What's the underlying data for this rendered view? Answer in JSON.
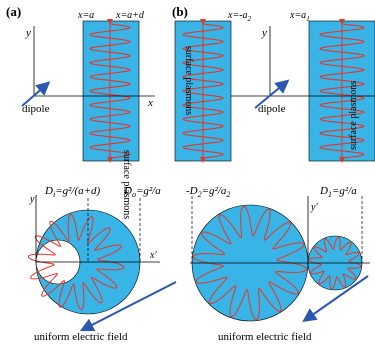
{
  "colors": {
    "fill": "#39b4e6",
    "wave": "#e2372b",
    "arrow": "#2b57b0",
    "axis": "#000000"
  },
  "panel_a": {
    "tag": "(a)",
    "x_left_label": "x=a",
    "x_right_label": "x=a+d",
    "y_label": "y",
    "x_label": "x",
    "dipole_label": "dipole",
    "plasmon_label": "surface plasmons",
    "di_label": "D",
    "di_sub": "i",
    "di_rest": "=g²/(a+d)",
    "do_label": "D",
    "do_sub": "o",
    "do_rest": "=g²/a",
    "yp_label": "y'",
    "xp_label": "x'",
    "field_label": "uniform electric field"
  },
  "panel_b": {
    "tag": "(b)",
    "x_left_label": "x=-a",
    "x_left_sub": "2",
    "x_right_label": "x=a",
    "x_right_sub": "1",
    "y_label": "y",
    "dipole_label": "dipole",
    "plasmon_left_label": "surface plasmons",
    "plasmon_right_label": "surface plasmons",
    "d2_label": "-D",
    "d2_sub": "2",
    "d2_rest": "=g²/a",
    "d2_sub2": "2",
    "d1_label": "D",
    "d1_sub": "1",
    "d1_rest": "=g²/a",
    "yp_label": "y'",
    "field_label": "uniform electric field"
  }
}
